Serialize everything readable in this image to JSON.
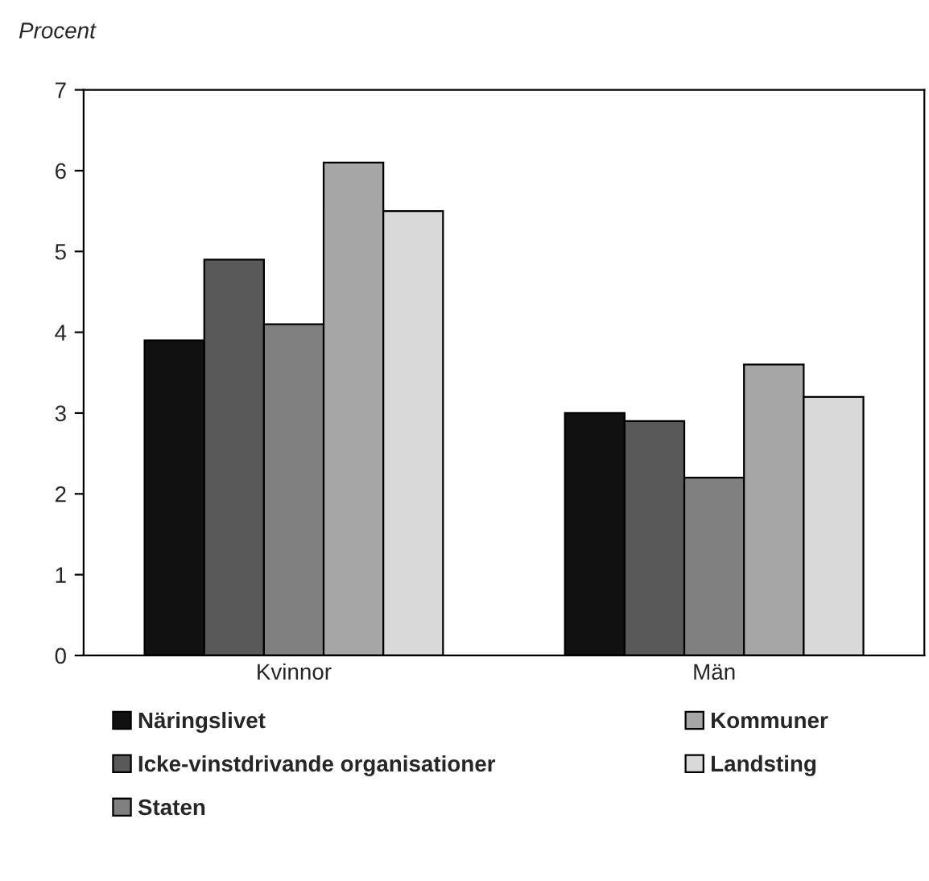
{
  "chart_data": {
    "type": "bar",
    "ylabel": "Procent",
    "categories": [
      "Kvinnor",
      "Män"
    ],
    "series": [
      {
        "name": "Näringslivet",
        "color": "#111111",
        "values": [
          3.9,
          3.0
        ]
      },
      {
        "name": "Icke-vinstdrivande organisationer",
        "color": "#595959",
        "values": [
          4.9,
          2.9
        ]
      },
      {
        "name": "Staten",
        "color": "#808080",
        "values": [
          4.1,
          2.2
        ]
      },
      {
        "name": "Kommuner",
        "color": "#a6a6a6",
        "values": [
          6.1,
          3.6
        ]
      },
      {
        "name": "Landsting",
        "color": "#d9d9d9",
        "values": [
          5.5,
          3.2
        ]
      }
    ],
    "ylim": [
      0,
      7
    ],
    "yticks": [
      0,
      1,
      2,
      3,
      4,
      5,
      6,
      7
    ],
    "grid": false,
    "legend": "bottom"
  }
}
